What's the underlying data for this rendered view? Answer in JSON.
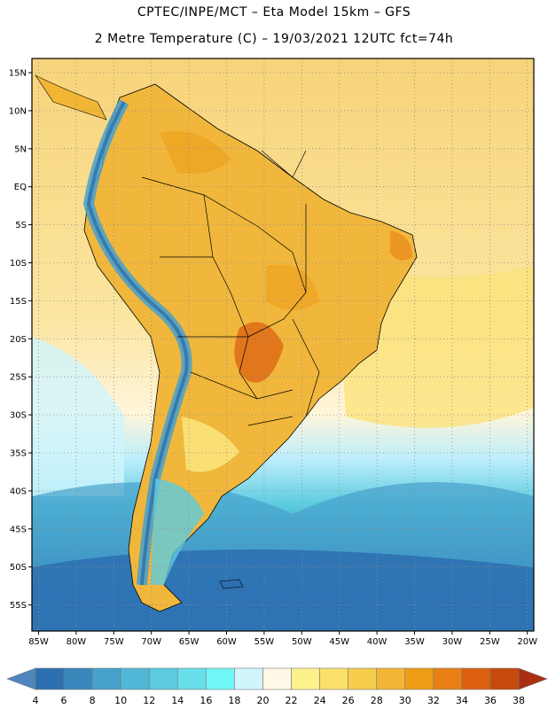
{
  "header": {
    "title_line1": "CPTEC/INPE/MCT –  Eta Model 15km – GFS",
    "title_line2": "2 Metre Temperature (C) – 19/03/2021 12UTC fct=74h"
  },
  "axes": {
    "latitude_labels": [
      "15N",
      "10N",
      "5N",
      "EQ",
      "5S",
      "10S",
      "15S",
      "20S",
      "25S",
      "30S",
      "35S",
      "40S",
      "45S",
      "50S",
      "55S"
    ],
    "longitude_labels": [
      "85W",
      "80W",
      "75W",
      "70W",
      "65W",
      "60W",
      "55W",
      "50W",
      "45W",
      "40W",
      "35W",
      "30W",
      "25W",
      "20W"
    ]
  },
  "colorbar": {
    "labels": [
      "4",
      "6",
      "8",
      "10",
      "12",
      "14",
      "16",
      "18",
      "20",
      "22",
      "24",
      "26",
      "28",
      "30",
      "32",
      "34",
      "36",
      "38"
    ],
    "under_color": "#4f86c0",
    "over_color": "#a83010",
    "colors": [
      "#2c6fb0",
      "#3a87bd",
      "#46a1cc",
      "#52b7d6",
      "#5ccbe0",
      "#66dfea",
      "#72f7f7",
      "#d0f5fd",
      "#fff8e6",
      "#fdf18c",
      "#fbe06a",
      "#f7cd4e",
      "#f2b634",
      "#ee9d18",
      "#e88014",
      "#dd6010",
      "#c64a0c"
    ]
  },
  "map": {
    "region": "South America",
    "field": "2 Metre Temperature"
  }
}
